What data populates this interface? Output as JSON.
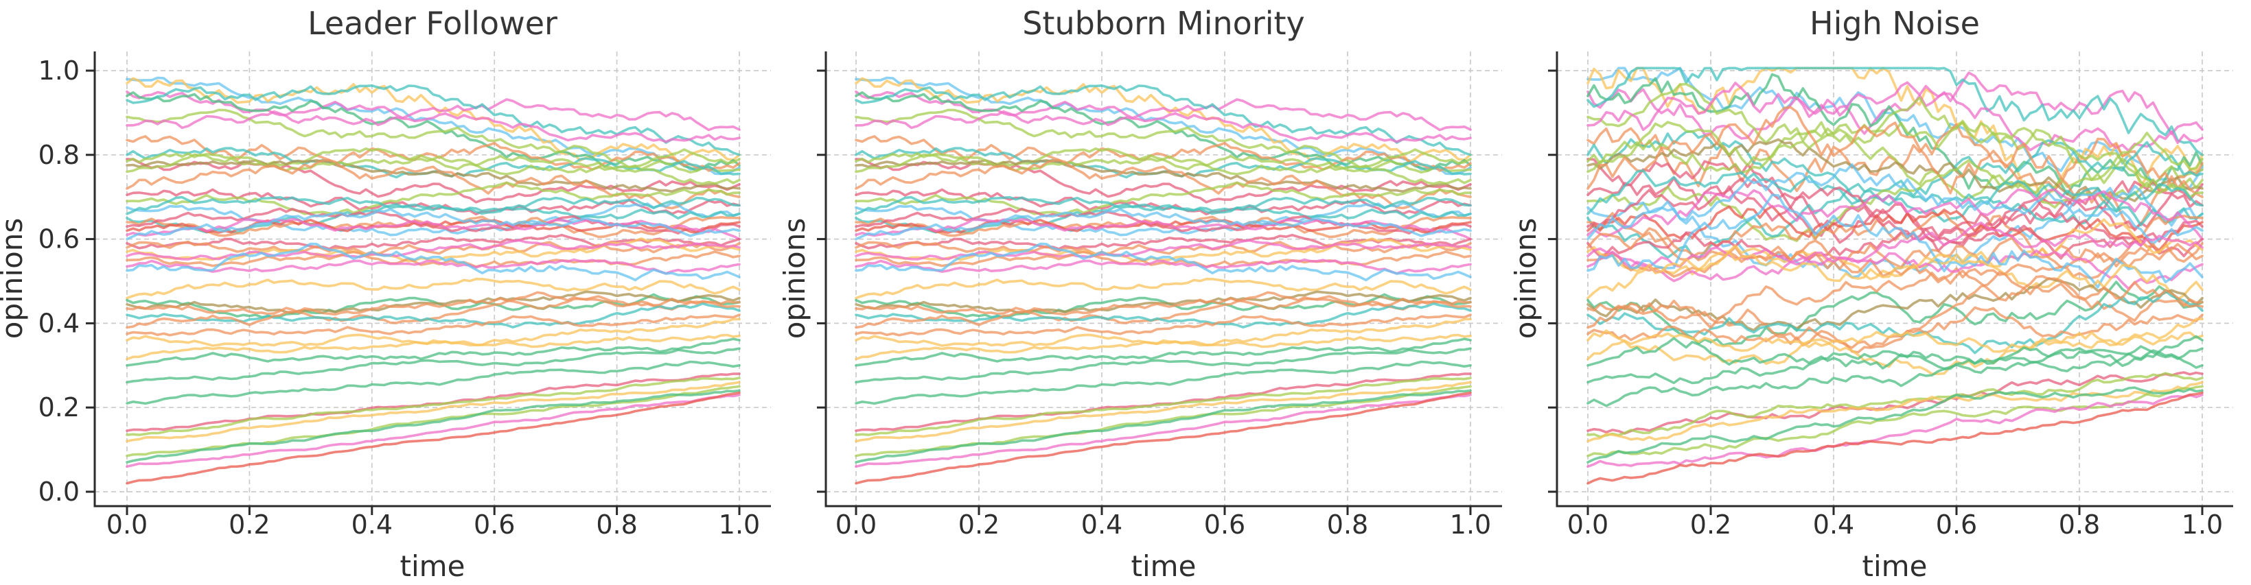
{
  "figure_background": "#ffffff",
  "text_color": "#2e2e2e",
  "grid_color": "#cbcbcb",
  "spine_color": "#2b2b2b",
  "palette": [
    "#f06ec8",
    "#64c3f0",
    "#46c3be",
    "#4bbe82",
    "#a5cd50",
    "#fac35a",
    "#f0935c",
    "#ea5a4e",
    "#e65f7d",
    "#ab9150"
  ],
  "axis_text": {
    "xlabel": "time",
    "ylabel": "opinions",
    "x_tick_labels": [
      "0.0",
      "0.2",
      "0.4",
      "0.6",
      "0.8",
      "1.0"
    ],
    "y_tick_labels": [
      "0.0",
      "0.2",
      "0.4",
      "0.6",
      "0.8",
      "1.0"
    ]
  },
  "chart_data": [
    {
      "type": "line",
      "title": "Leader Follower",
      "xlabel": "time",
      "ylabel": "opinions",
      "xlim": [
        -0.053,
        1.052
      ],
      "ylim": [
        -0.034,
        1.046
      ],
      "x_ticks": [
        0,
        0.2,
        0.4,
        0.6,
        0.8,
        1.0
      ],
      "y_ticks": [
        0,
        0.2,
        0.4,
        0.6,
        0.8,
        1.0
      ],
      "grid": true,
      "legend": false,
      "show_y_tick_labels": true,
      "n_points": 100,
      "seed": 11,
      "noise_mult": 1.0,
      "clamp": [
        -0.02,
        1.04
      ],
      "series_note": "each series = [y_start, y_end, palette_color_index, per_step_noise_amplitude]; trajectories drift from y_start to y_end with random-walk noise",
      "series": [
        [
          0.98,
          0.77,
          1,
          0.011
        ],
        [
          0.97,
          0.8,
          5,
          0.016
        ],
        [
          0.95,
          0.86,
          0,
          0.01
        ],
        [
          0.94,
          0.775,
          3,
          0.012
        ],
        [
          0.93,
          0.8,
          2,
          0.012
        ],
        [
          0.89,
          0.765,
          4,
          0.01
        ],
        [
          0.87,
          0.84,
          0,
          0.01
        ],
        [
          0.835,
          0.78,
          6,
          0.013
        ],
        [
          0.8,
          0.755,
          2,
          0.01
        ],
        [
          0.79,
          0.73,
          8,
          0.01
        ],
        [
          0.785,
          0.79,
          4,
          0.009
        ],
        [
          0.775,
          0.72,
          9,
          0.008
        ],
        [
          0.76,
          0.74,
          4,
          0.009
        ],
        [
          0.72,
          0.7,
          6,
          0.013
        ],
        [
          0.705,
          0.68,
          8,
          0.01
        ],
        [
          0.69,
          0.71,
          4,
          0.008
        ],
        [
          0.675,
          0.66,
          1,
          0.009
        ],
        [
          0.66,
          0.68,
          2,
          0.008
        ],
        [
          0.65,
          0.66,
          2,
          0.008
        ],
        [
          0.64,
          0.65,
          6,
          0.009
        ],
        [
          0.63,
          0.63,
          8,
          0.008
        ],
        [
          0.62,
          0.64,
          7,
          0.008
        ],
        [
          0.61,
          0.6,
          0,
          0.008
        ],
        [
          0.6,
          0.62,
          1,
          0.008
        ],
        [
          0.59,
          0.6,
          8,
          0.007
        ],
        [
          0.58,
          0.59,
          6,
          0.008
        ],
        [
          0.57,
          0.575,
          5,
          0.007
        ],
        [
          0.56,
          0.58,
          0,
          0.006
        ],
        [
          0.55,
          0.56,
          6,
          0.007
        ],
        [
          0.535,
          0.54,
          0,
          0.006
        ],
        [
          0.525,
          0.51,
          1,
          0.011
        ],
        [
          0.46,
          0.48,
          5,
          0.008
        ],
        [
          0.455,
          0.45,
          3,
          0.007
        ],
        [
          0.445,
          0.46,
          9,
          0.006
        ],
        [
          0.435,
          0.45,
          6,
          0.007
        ],
        [
          0.42,
          0.43,
          2,
          0.006
        ],
        [
          0.39,
          0.44,
          6,
          0.007
        ],
        [
          0.375,
          0.42,
          6,
          0.006
        ],
        [
          0.36,
          0.41,
          5,
          0.006
        ],
        [
          0.315,
          0.37,
          5,
          0.005
        ],
        [
          0.3,
          0.36,
          3,
          0.005
        ],
        [
          0.26,
          0.34,
          3,
          0.004
        ],
        [
          0.21,
          0.3,
          3,
          0.004
        ],
        [
          0.145,
          0.28,
          8,
          0.003
        ],
        [
          0.135,
          0.27,
          4,
          0.003
        ],
        [
          0.12,
          0.26,
          5,
          0.003
        ],
        [
          0.085,
          0.25,
          4,
          0.0025
        ],
        [
          0.07,
          0.24,
          3,
          0.0025
        ],
        [
          0.06,
          0.23,
          0,
          0.0025
        ],
        [
          0.02,
          0.235,
          7,
          0.002
        ]
      ]
    },
    {
      "type": "line",
      "title": "Stubborn Minority",
      "xlabel": "time",
      "ylabel": "opinions",
      "xlim": [
        -0.053,
        1.052
      ],
      "ylim": [
        -0.034,
        1.046
      ],
      "x_ticks": [
        0,
        0.2,
        0.4,
        0.6,
        0.8,
        1.0
      ],
      "y_ticks": [
        0,
        0.2,
        0.4,
        0.6,
        0.8,
        1.0
      ],
      "grid": true,
      "legend": false,
      "show_y_tick_labels": false,
      "n_points": 100,
      "seed": 11,
      "noise_mult": 1.0,
      "clamp": [
        -0.02,
        1.04
      ],
      "series_same_as": 0
    },
    {
      "type": "line",
      "title": "High Noise",
      "xlabel": "time",
      "ylabel": "opinions",
      "xlim": [
        -0.053,
        1.052
      ],
      "ylim": [
        -0.034,
        1.046
      ],
      "x_ticks": [
        0,
        0.2,
        0.4,
        0.6,
        0.8,
        1.0
      ],
      "y_ticks": [
        0,
        0.2,
        0.4,
        0.6,
        0.8,
        1.0
      ],
      "grid": true,
      "legend": false,
      "show_y_tick_labels": false,
      "n_points": 100,
      "seed": 11,
      "noise_mult": 2.7,
      "clamp": [
        0.004,
        1.006
      ],
      "series_same_as": 0
    }
  ]
}
